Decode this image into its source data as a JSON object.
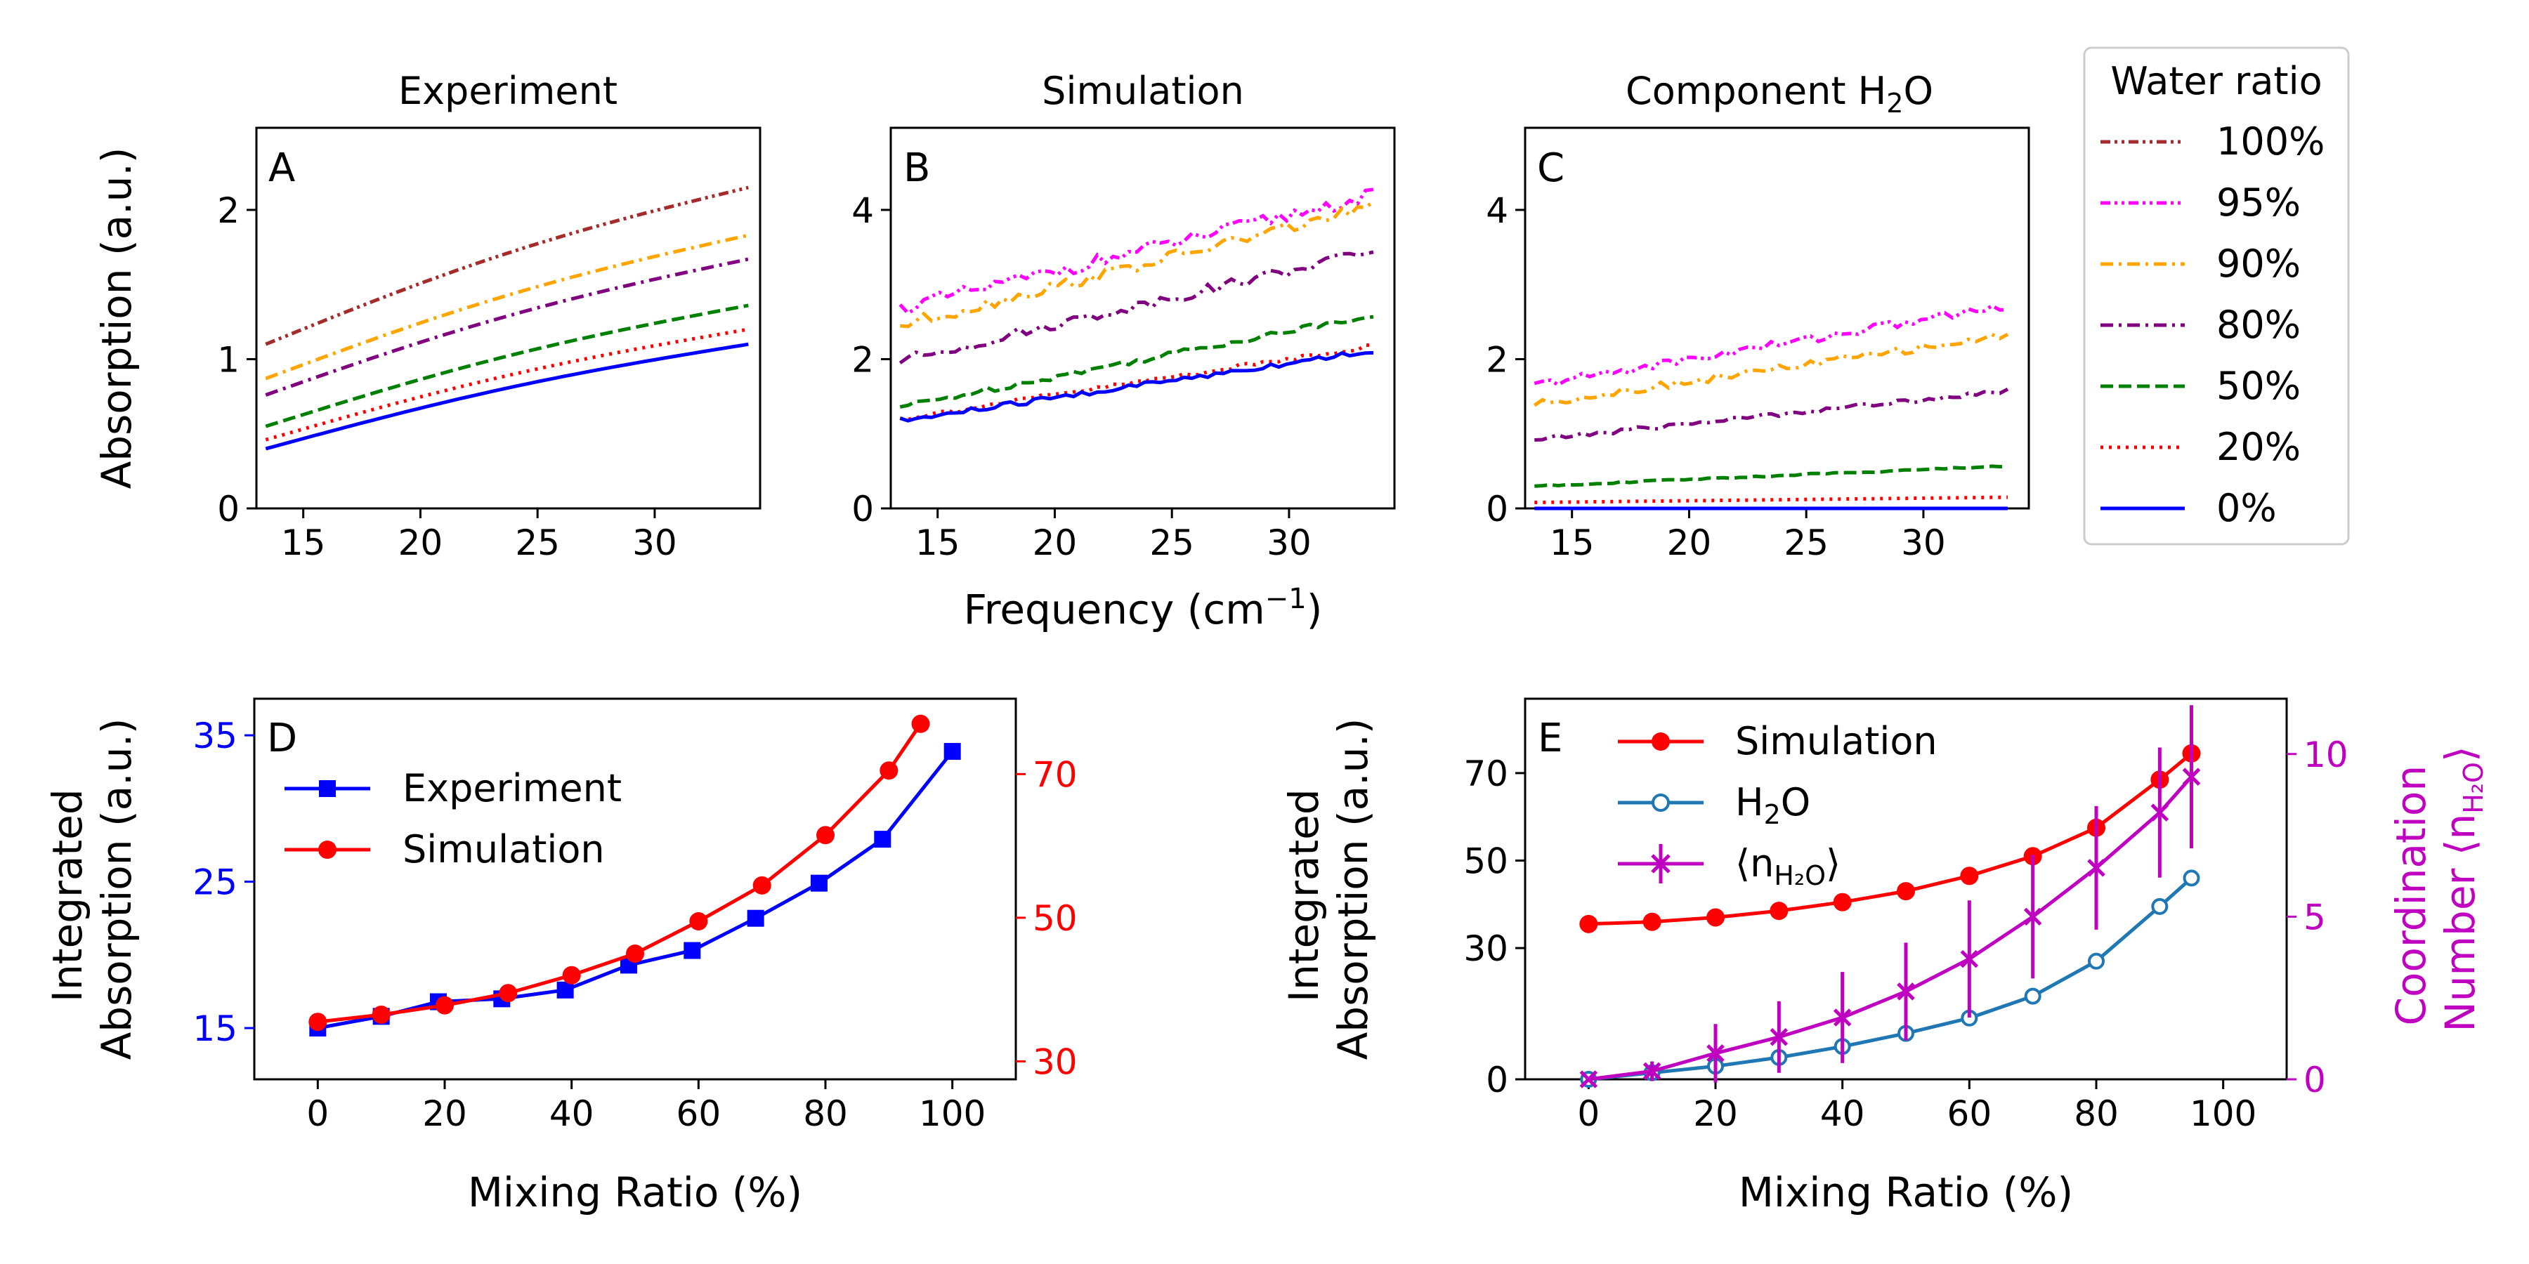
{
  "figure": {
    "shared_xlabel": "Frequency (cm",
    "shared_xlabel_sup": "−1",
    "shared_xlabel_end": ")",
    "shared_ylabel": "Absorption (a.u.)"
  },
  "legend_main": {
    "title": "Water ratio",
    "entries": [
      {
        "label": "100%",
        "color": "#a52a2a",
        "dash": "dashdotdot"
      },
      {
        "label": "95%",
        "color": "#ff00ff",
        "dash": "dashdotdot"
      },
      {
        "label": "90%",
        "color": "#ffa500",
        "dash": "dashdot"
      },
      {
        "label": "80%",
        "color": "#800080",
        "dash": "dashdot"
      },
      {
        "label": "50%",
        "color": "#008000",
        "dash": "dashed"
      },
      {
        "label": "20%",
        "color": "#ff0000",
        "dash": "dotted"
      },
      {
        "label": "0%",
        "color": "#0000ff",
        "dash": "solid"
      }
    ]
  },
  "colors": {
    "blue": "#0000ff",
    "red": "#ff0000",
    "teal": "#1f77b4",
    "magenta": "#c000c0"
  },
  "chart_data": [
    {
      "panel": "A",
      "type": "line",
      "title": "Experiment",
      "xlim": [
        13,
        34.5
      ],
      "ylim": [
        0,
        2.55
      ],
      "xticks": [
        15,
        20,
        25,
        30
      ],
      "yticks": [
        0,
        1,
        2
      ],
      "series": [
        {
          "name": "100%",
          "x": [
            13.4,
            34
          ],
          "y_start": 1.1,
          "y_end": 2.15,
          "noise": 0
        },
        {
          "name": "90%",
          "x": [
            13.4,
            34
          ],
          "y_start": 0.87,
          "y_end": 1.83,
          "noise": 0
        },
        {
          "name": "80%",
          "x": [
            13.4,
            34
          ],
          "y_start": 0.76,
          "y_end": 1.67,
          "noise": 0
        },
        {
          "name": "50%",
          "x": [
            13.4,
            34
          ],
          "y_start": 0.55,
          "y_end": 1.36,
          "noise": 0
        },
        {
          "name": "20%",
          "x": [
            13.4,
            34
          ],
          "y_start": 0.46,
          "y_end": 1.2,
          "noise": 0
        },
        {
          "name": "0%",
          "x": [
            13.4,
            34
          ],
          "y_start": 0.4,
          "y_end": 1.1,
          "noise": 0
        }
      ]
    },
    {
      "panel": "B",
      "type": "line",
      "title": "Simulation",
      "xlim": [
        13,
        34.5
      ],
      "ylim": [
        0,
        5.1
      ],
      "xticks": [
        15,
        20,
        25,
        30
      ],
      "yticks": [
        0,
        2,
        4
      ],
      "series": [
        {
          "name": "95%",
          "x": [
            13.4,
            33.6
          ],
          "y_start": 2.68,
          "y_end": 4.2,
          "noise": 0.09
        },
        {
          "name": "90%",
          "x": [
            13.4,
            33.6
          ],
          "y_start": 2.45,
          "y_end": 4.05,
          "noise": 0.08
        },
        {
          "name": "80%",
          "x": [
            13.4,
            33.6
          ],
          "y_start": 1.98,
          "y_end": 3.45,
          "noise": 0.07
        },
        {
          "name": "50%",
          "x": [
            13.4,
            33.6
          ],
          "y_start": 1.36,
          "y_end": 2.6,
          "noise": 0.04
        },
        {
          "name": "20%",
          "x": [
            13.4,
            33.6
          ],
          "y_start": 1.2,
          "y_end": 2.18,
          "noise": 0.03
        },
        {
          "name": "0%",
          "x": [
            13.4,
            33.6
          ],
          "y_start": 1.17,
          "y_end": 2.12,
          "noise": 0.04
        }
      ]
    },
    {
      "panel": "C",
      "type": "line",
      "title": "Component H",
      "title_sub": "2",
      "title_end": "O",
      "xlim": [
        13,
        34.5
      ],
      "ylim": [
        0,
        5.1
      ],
      "xticks": [
        15,
        20,
        25,
        30
      ],
      "yticks": [
        0,
        2,
        4
      ],
      "series": [
        {
          "name": "95%",
          "x": [
            13.4,
            33.6
          ],
          "y_start": 1.65,
          "y_end": 2.72,
          "noise": 0.06
        },
        {
          "name": "90%",
          "x": [
            13.4,
            33.6
          ],
          "y_start": 1.4,
          "y_end": 2.32,
          "noise": 0.05
        },
        {
          "name": "80%",
          "x": [
            13.4,
            33.6
          ],
          "y_start": 0.92,
          "y_end": 1.58,
          "noise": 0.03
        },
        {
          "name": "50%",
          "x": [
            13.4,
            33.6
          ],
          "y_start": 0.3,
          "y_end": 0.57,
          "noise": 0.01
        },
        {
          "name": "20%",
          "x": [
            13.4,
            33.6
          ],
          "y_start": 0.08,
          "y_end": 0.15,
          "noise": 0
        },
        {
          "name": "0%",
          "x": [
            13.4,
            33.6
          ],
          "y_start": 0.0,
          "y_end": 0.0,
          "noise": 0
        }
      ]
    },
    {
      "panel": "D",
      "type": "line",
      "xlabel": "Mixing Ratio (%)",
      "ylabel": [
        "Integrated",
        "Absorption (a.u.)"
      ],
      "xlim": [
        -10,
        110
      ],
      "ylim_left": [
        11.5,
        37.5
      ],
      "ylim_right": [
        27.5,
        80.5
      ],
      "xticks": [
        0,
        20,
        40,
        60,
        80,
        100
      ],
      "yticks_left": [
        15,
        25,
        35
      ],
      "yticks_right": [
        30,
        50,
        70
      ],
      "legend": [
        "Experiment",
        "Simulation"
      ],
      "series": [
        {
          "name": "Experiment",
          "axis": "left",
          "marker": "square",
          "x": [
            0,
            10,
            19,
            29,
            39,
            49,
            59,
            69,
            79,
            89,
            100
          ],
          "y": [
            15.0,
            15.8,
            16.8,
            17.0,
            17.6,
            19.3,
            20.3,
            22.5,
            24.9,
            27.9,
            33.9
          ]
        },
        {
          "name": "Simulation",
          "axis": "right",
          "marker": "circle",
          "x": [
            0,
            10,
            20,
            30,
            40,
            50,
            60,
            70,
            80,
            90,
            95
          ],
          "y": [
            35.5,
            36.5,
            37.8,
            39.5,
            42.0,
            45.0,
            49.5,
            54.5,
            61.5,
            70.5,
            77.0
          ]
        }
      ]
    },
    {
      "panel": "E",
      "type": "line",
      "xlabel": "Mixing Ratio (%)",
      "ylabel": [
        "Integrated",
        "Absorption (a.u.)"
      ],
      "ylabel_right": "Coordination",
      "ylabel_right2": "Number ⟨n",
      "ylabel_right2_sub": "H₂O",
      "ylabel_right2_end": "⟩",
      "xlim": [
        -10,
        110
      ],
      "ylim_left": [
        0,
        87
      ],
      "ylim_right": [
        0,
        11.7
      ],
      "xticks": [
        0,
        20,
        40,
        60,
        80,
        100
      ],
      "yticks_left": [
        0,
        30,
        50,
        70
      ],
      "yticks_right": [
        0,
        5,
        10
      ],
      "legend": [
        "Simulation",
        "H",
        "⟨n"
      ],
      "legend_h2o_sub": "2",
      "legend_h2o_end": "O",
      "legend_n_sub": "H₂O",
      "legend_n_end": "⟩",
      "series": [
        {
          "name": "Simulation",
          "axis": "left",
          "marker": "circle",
          "x": [
            0,
            10,
            20,
            30,
            40,
            50,
            60,
            70,
            80,
            90,
            95
          ],
          "y": [
            35.5,
            36.0,
            37.0,
            38.5,
            40.5,
            43.0,
            46.5,
            51.0,
            57.5,
            68.5,
            74.5
          ]
        },
        {
          "name": "H2O",
          "axis": "left",
          "marker": "open-circle",
          "x": [
            0,
            10,
            20,
            30,
            40,
            50,
            60,
            70,
            80,
            90,
            95
          ],
          "y": [
            0,
            1.5,
            3.0,
            5.0,
            7.5,
            10.5,
            14.0,
            19.0,
            27.0,
            39.5,
            46.0
          ]
        },
        {
          "name": "n",
          "axis": "right",
          "marker": "x",
          "x": [
            0,
            10,
            20,
            30,
            40,
            50,
            60,
            70,
            80,
            90,
            95
          ],
          "y": [
            0,
            0.25,
            0.8,
            1.3,
            1.9,
            2.7,
            3.7,
            5.0,
            6.5,
            8.2,
            9.3
          ],
          "err": [
            0,
            0.3,
            0.9,
            1.1,
            1.4,
            1.5,
            1.8,
            1.9,
            1.9,
            2.0,
            2.2
          ]
        }
      ]
    }
  ]
}
